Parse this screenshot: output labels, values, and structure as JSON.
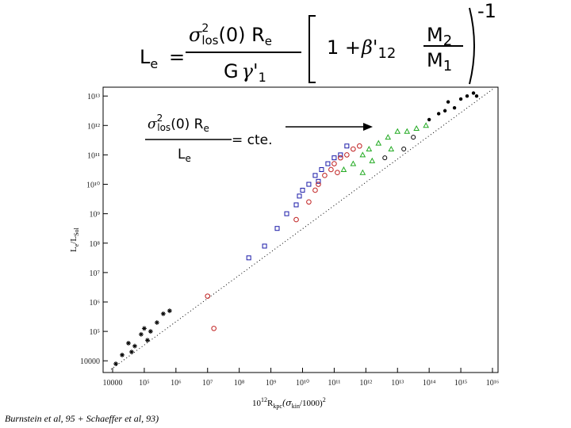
{
  "formula": {
    "lhs": "L",
    "lhs_sub": "e",
    "equals": "=",
    "num_sigma": "σ",
    "num_sup": "2",
    "num_sub": "los",
    "num_rest": "(0) R",
    "num_rest_sub": "e",
    "den": "G",
    "den_gamma": "γ'",
    "den_sub": "1",
    "paren_one": "1 +",
    "beta": "β'",
    "beta_sub": "12",
    "m_num": "M",
    "m_num_sub": "2",
    "m_den": "M",
    "m_den_sub": "1",
    "exponent": "-1"
  },
  "annotation": {
    "sigma": "σ",
    "sup": "2",
    "sub": "los",
    "rest": "(0) R",
    "rest_sub": "e",
    "equals": "= cte.",
    "den": "L",
    "den_sub": "e"
  },
  "citation": "Burnstein et al, 95 + Schaeffer et al, 93)",
  "chart_data": {
    "type": "scatter",
    "x_label": {
      "base": "10",
      "exp": "12",
      "r": "R",
      "r_sub": "kpc",
      "open": "(σ",
      "kin": "kin",
      "close": "/1000)",
      "sq": "2"
    },
    "y_label": {
      "l": "L",
      "l_sub": "e",
      "slash": "/L",
      "sol": "Sol"
    },
    "log_x": true,
    "log_y": true,
    "xlim": [
      5000,
      15000000000000000
    ],
    "ylim": [
      4000,
      20000000000000
    ],
    "xticks": [
      10000,
      {
        "value": 100000,
        "label": "10⁵"
      },
      {
        "value": 1000000,
        "label": "10⁶"
      },
      {
        "value": 10000000,
        "label": "10⁷"
      },
      {
        "value": 100000000,
        "label": "10⁸"
      },
      {
        "value": 1000000000,
        "label": "10⁹"
      },
      {
        "value": 10000000000,
        "label": "10¹⁰"
      },
      {
        "value": 100000000000,
        "label": "10¹¹"
      },
      {
        "value": 1000000000000,
        "label": "10¹²"
      },
      {
        "value": 10000000000000,
        "label": "10¹³"
      },
      {
        "value": 100000000000000,
        "label": "10¹⁴"
      },
      {
        "value": 1000000000000000,
        "label": "10¹⁵"
      },
      {
        "value": 10000000000000000,
        "label": "10¹⁶"
      }
    ],
    "yticks": [
      10000,
      {
        "value": 100000,
        "label": "10⁵"
      },
      {
        "value": 1000000,
        "label": "10⁶"
      },
      {
        "value": 10000000,
        "label": "10⁷"
      },
      {
        "value": 100000000,
        "label": "10⁸"
      },
      {
        "value": 1000000000,
        "label": "10⁹"
      },
      {
        "value": 10000000000,
        "label": "10¹⁰"
      },
      {
        "value": 100000000000,
        "label": "10¹¹"
      },
      {
        "value": 1000000000000,
        "label": "10¹²"
      },
      {
        "value": 10000000000000,
        "label": "10¹³"
      }
    ],
    "series": [
      {
        "marker": "star",
        "color": "#000000",
        "x": [
          12600,
          20000,
          31600,
          50100,
          79400,
          100000,
          158000,
          251000,
          398000,
          631000,
          126000,
          39800
        ],
        "y": [
          7940,
          15800,
          39800,
          31600,
          79400,
          126000,
          100000,
          200000,
          398000,
          501000,
          50100,
          20000
        ]
      },
      {
        "marker": "square",
        "color": "#1a1aa8",
        "x": [
          200000000,
          631000000,
          1580000000,
          3160000000,
          6310000000,
          10000000000,
          15800000000,
          25100000000,
          39800000000,
          63100000000,
          100000000000,
          158000000000,
          31600000000,
          7940000000,
          251000000000
        ],
        "y": [
          31600000,
          79400000,
          316000000,
          1000000000,
          2000000000,
          6310000000,
          10000000000,
          20000000000,
          31600000000,
          50100000000,
          79400000000,
          100000000000,
          12600000000,
          3980000000,
          200000000000
        ]
      },
      {
        "marker": "circle",
        "color": "#c02020",
        "x": [
          10000000,
          15800000,
          6310000000,
          15800000000,
          31600000000,
          50100000000,
          79400000000,
          100000000000,
          158000000000,
          251000000000,
          398000000000,
          25100000000,
          126000000000,
          631000000000
        ],
        "y": [
          1580000,
          126000,
          631000000,
          2510000000,
          10000000000,
          20000000000,
          31600000000,
          50100000000,
          79400000000,
          100000000000,
          158000000000,
          6310000000,
          25100000000,
          200000000000
        ]
      },
      {
        "marker": "triangle",
        "color": "#22aa22",
        "x": [
          200000000000,
          398000000000,
          794000000000,
          1260000000000,
          2510000000000,
          5010000000000,
          10000000000000,
          20000000000000,
          39800000000000,
          1580000000000,
          6310000000000,
          794000000000,
          79400000000000
        ],
        "y": [
          31600000000,
          50100000000,
          100000000000,
          158000000000,
          251000000000,
          398000000000,
          631000000000,
          631000000000,
          794000000000,
          63100000000,
          158000000000,
          25100000000,
          1000000000000
        ]
      },
      {
        "marker": "open",
        "color": "#000000",
        "x": [
          15800000000000,
          31600000000000,
          3980000000000
        ],
        "y": [
          158000000000,
          398000000000,
          79400000000
        ]
      },
      {
        "marker": "dot",
        "color": "#000000",
        "x": [
          100000000000000,
          200000000000000,
          398000000000000,
          631000000000000,
          1000000000000000,
          1580000000000000,
          2510000000000000,
          3160000000000000,
          316000000000000
        ],
        "y": [
          1580000000000,
          2510000000000,
          6310000000000,
          3980000000000,
          7940000000000,
          10000000000000,
          12600000000000,
          10000000000000,
          3160000000000
        ]
      }
    ]
  }
}
